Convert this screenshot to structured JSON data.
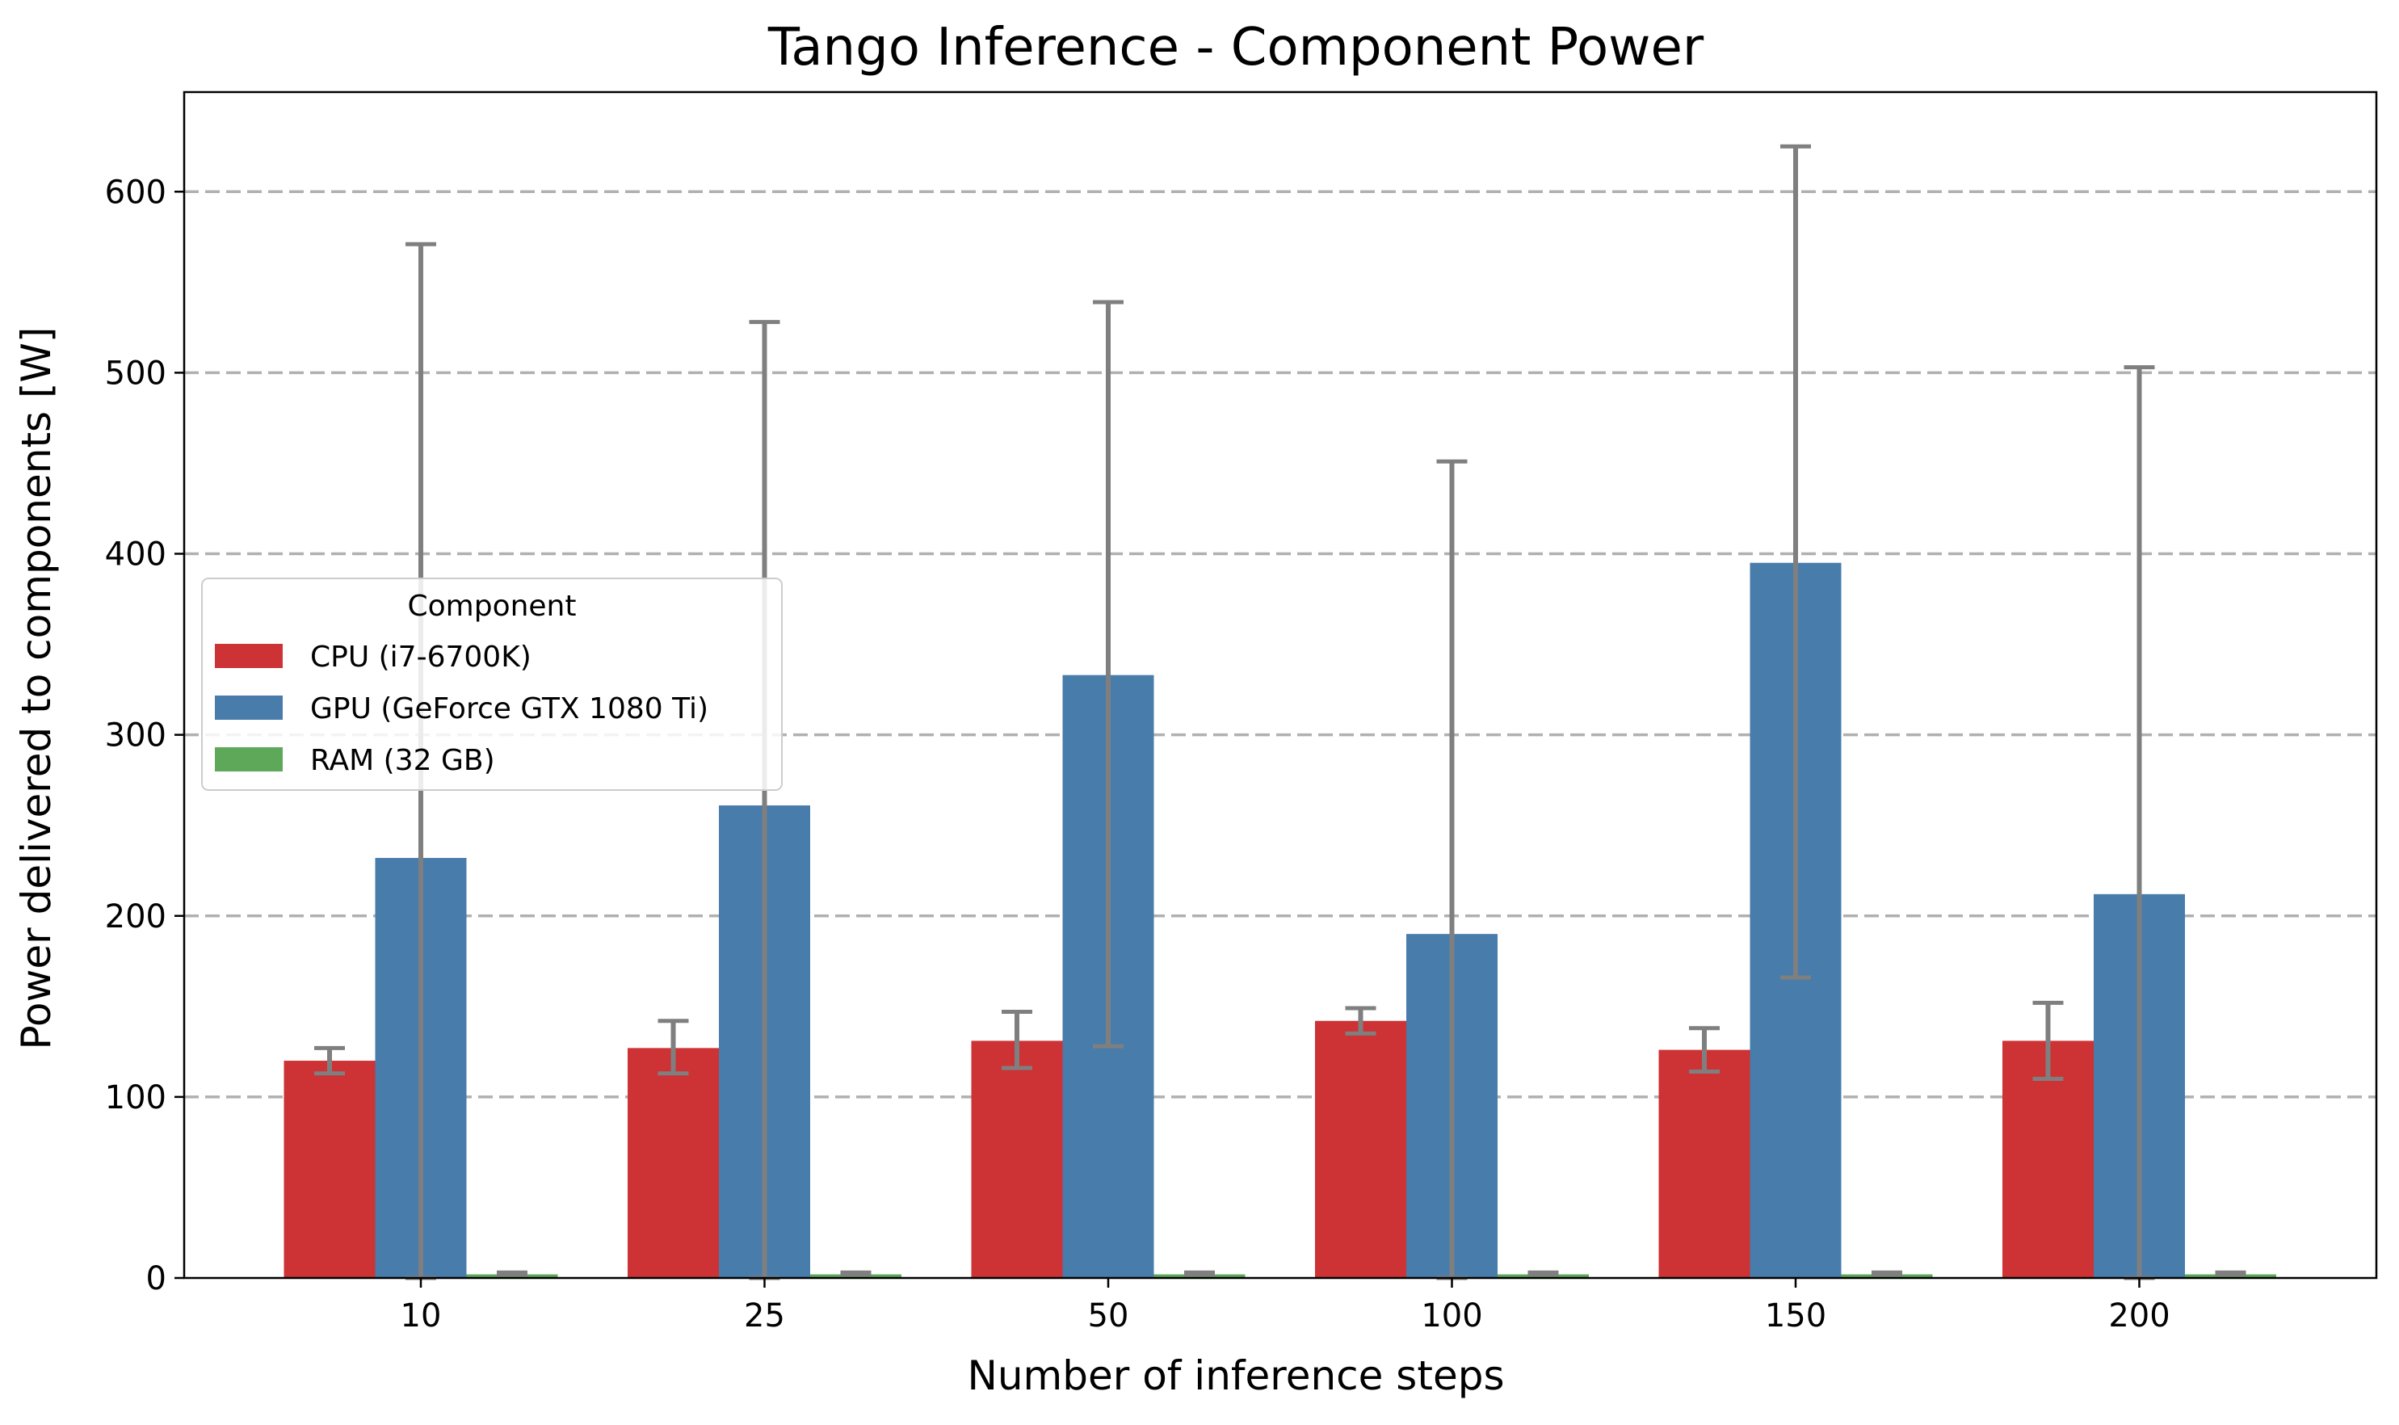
{
  "chart_data": {
    "type": "bar",
    "title": "Tango Inference - Component Power",
    "xlabel": "Number of inference steps",
    "ylabel": "Power delivered to components [W]",
    "categories": [
      "10",
      "25",
      "50",
      "100",
      "150",
      "200"
    ],
    "ylim": [
      0,
      655
    ],
    "yticks": [
      0,
      100,
      200,
      300,
      400,
      500,
      600
    ],
    "grid": "horizontal dashed",
    "legend": {
      "title": "Component",
      "placement": "center-left"
    },
    "series": [
      {
        "name": "CPU (i7-6700K)",
        "color": "#cd3234",
        "values": [
          120,
          127,
          131,
          142,
          126,
          131
        ],
        "err_low": [
          113,
          113,
          116,
          135,
          114,
          110
        ],
        "err_high": [
          127,
          142,
          147,
          149,
          138,
          152
        ]
      },
      {
        "name": "GPU (GeForce GTX 1080 Ti)",
        "color": "#477cab",
        "values": [
          232,
          261,
          333,
          190,
          395,
          212
        ],
        "err_low": [
          0,
          0,
          128,
          0,
          166,
          0
        ],
        "err_high": [
          571,
          528,
          539,
          451,
          625,
          503
        ]
      },
      {
        "name": "RAM (32 GB)",
        "color": "#5ea85a",
        "values": [
          2,
          2,
          2,
          2,
          2,
          2
        ],
        "err_low": [
          2,
          2,
          2,
          2,
          2,
          2
        ],
        "err_high": [
          3,
          3,
          3,
          3,
          3,
          3
        ]
      }
    ],
    "error_bar_color": "#7f7f7f"
  }
}
